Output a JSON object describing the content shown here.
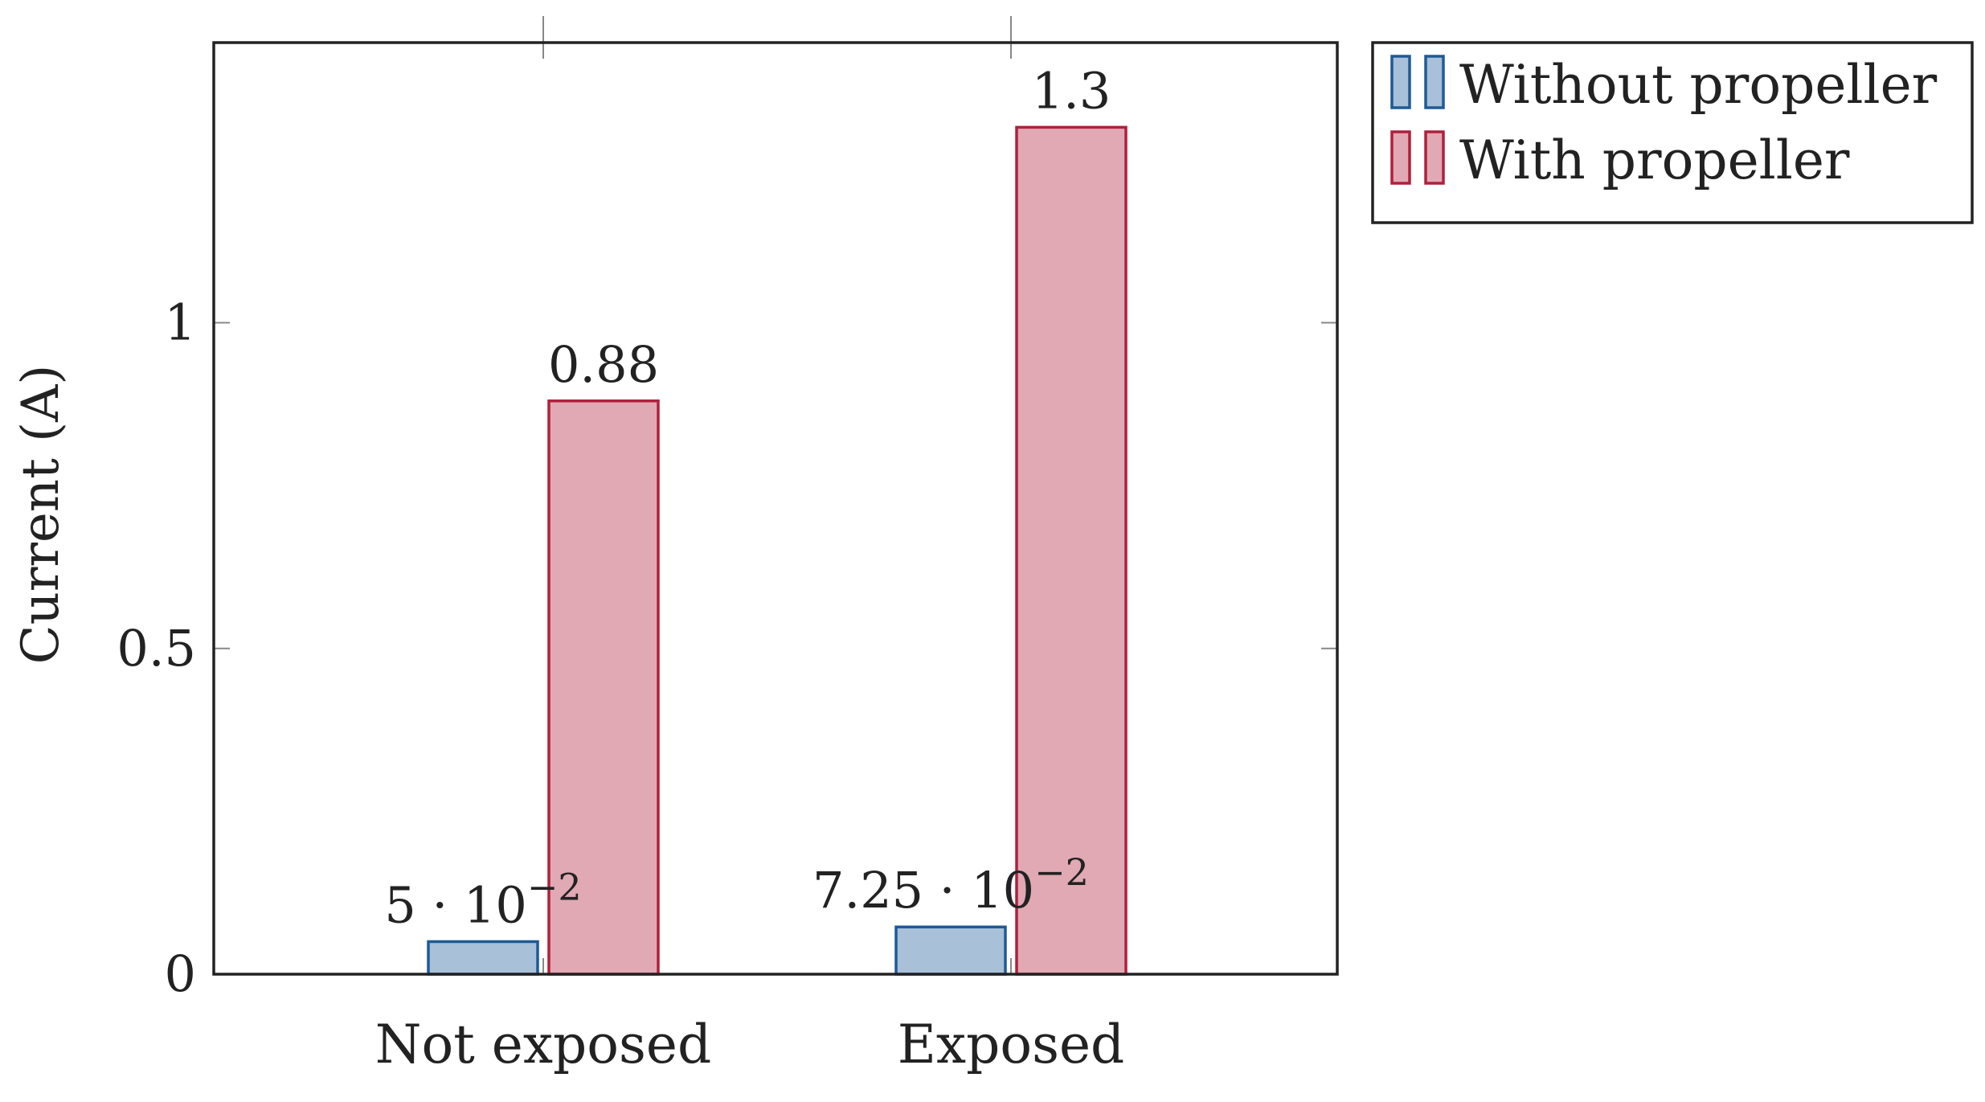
{
  "chart_data": {
    "type": "bar",
    "categories": [
      "Not exposed",
      "Exposed"
    ],
    "series": [
      {
        "name": "Without propeller",
        "values": [
          0.05,
          0.0725
        ],
        "value_labels": [
          "5 · 10",
          "7.25 · 10"
        ],
        "value_label_exponents": [
          "−2",
          "−2"
        ],
        "fill": "#a8c0d8",
        "stroke": "#1f5a96"
      },
      {
        "name": "With propeller",
        "values": [
          0.88,
          1.3
        ],
        "value_labels": [
          "0.88",
          "1.3"
        ],
        "value_label_exponents": [
          "",
          ""
        ],
        "fill": "#e0a9b3",
        "stroke": "#b0203c"
      }
    ],
    "xlabel": "",
    "ylabel": "Current (A)",
    "ylim": [
      0,
      1.43
    ],
    "yticks": [
      0,
      0.5,
      1
    ],
    "ytick_labels": [
      "0",
      "0.5",
      "1"
    ],
    "grid": false,
    "legend_position": "outside-top-right"
  }
}
